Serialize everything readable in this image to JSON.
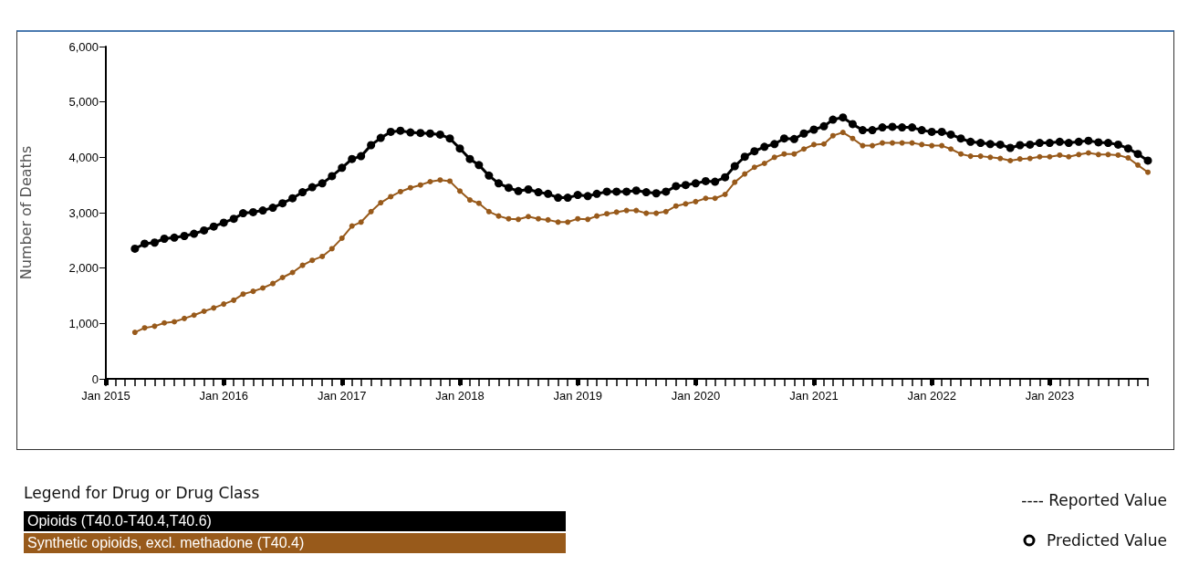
{
  "chart_data": {
    "type": "line",
    "ylabel": "Number of Deaths",
    "legend_title": "Legend for Drug or Drug Class",
    "legend": "bottom left",
    "grid": false,
    "marker": "circle",
    "line_style": "solid",
    "annotations": [
      "---- Reported Value",
      "Predicted Value"
    ],
    "ylim": [
      0,
      6000
    ],
    "yticks": [
      0,
      {
        "value": 1000,
        "label": "1,000"
      },
      {
        "value": 2000,
        "label": "2,000"
      },
      {
        "value": 3000,
        "label": "3,000"
      },
      {
        "value": 4000,
        "label": "4,000"
      },
      {
        "value": 5000,
        "label": "5,000"
      },
      {
        "value": 6000,
        "label": "6,000"
      }
    ],
    "xlim": [
      "2015-01",
      "2023-11"
    ],
    "xticks": [
      {
        "value": "2015-01",
        "label": "Jan 2015"
      },
      {
        "value": "2015-02",
        "label": null
      },
      {
        "value": "2015-03",
        "label": null
      },
      {
        "value": "2015-04",
        "label": null
      },
      {
        "value": "2015-05",
        "label": null
      },
      {
        "value": "2015-06",
        "label": null
      },
      {
        "value": "2015-07",
        "label": null
      },
      {
        "value": "2015-08",
        "label": null
      },
      {
        "value": "2015-09",
        "label": null
      },
      {
        "value": "2015-10",
        "label": null
      },
      {
        "value": "2015-11",
        "label": null
      },
      {
        "value": "2015-12",
        "label": null
      },
      {
        "value": "2016-01",
        "label": "Jan 2016"
      },
      {
        "value": "2016-02",
        "label": null
      },
      {
        "value": "2016-03",
        "label": null
      },
      {
        "value": "2016-04",
        "label": null
      },
      {
        "value": "2016-05",
        "label": null
      },
      {
        "value": "2016-06",
        "label": null
      },
      {
        "value": "2016-07",
        "label": null
      },
      {
        "value": "2016-08",
        "label": null
      },
      {
        "value": "2016-09",
        "label": null
      },
      {
        "value": "2016-10",
        "label": null
      },
      {
        "value": "2016-11",
        "label": null
      },
      {
        "value": "2016-12",
        "label": null
      },
      {
        "value": "2017-01",
        "label": "Jan 2017"
      },
      {
        "value": "2017-02",
        "label": null
      },
      {
        "value": "2017-03",
        "label": null
      },
      {
        "value": "2017-04",
        "label": null
      },
      {
        "value": "2017-05",
        "label": null
      },
      {
        "value": "2017-06",
        "label": null
      },
      {
        "value": "2017-07",
        "label": null
      },
      {
        "value": "2017-08",
        "label": null
      },
      {
        "value": "2017-09",
        "label": null
      },
      {
        "value": "2017-10",
        "label": null
      },
      {
        "value": "2017-11",
        "label": null
      },
      {
        "value": "2017-12",
        "label": null
      },
      {
        "value": "2018-01",
        "label": "Jan 2018"
      },
      {
        "value": "2018-02",
        "label": null
      },
      {
        "value": "2018-03",
        "label": null
      },
      {
        "value": "2018-04",
        "label": null
      },
      {
        "value": "2018-05",
        "label": null
      },
      {
        "value": "2018-06",
        "label": null
      },
      {
        "value": "2018-07",
        "label": null
      },
      {
        "value": "2018-08",
        "label": null
      },
      {
        "value": "2018-09",
        "label": null
      },
      {
        "value": "2018-10",
        "label": null
      },
      {
        "value": "2018-11",
        "label": null
      },
      {
        "value": "2018-12",
        "label": null
      },
      {
        "value": "2019-01",
        "label": "Jan 2019"
      },
      {
        "value": "2019-02",
        "label": null
      },
      {
        "value": "2019-03",
        "label": null
      },
      {
        "value": "2019-04",
        "label": null
      },
      {
        "value": "2019-05",
        "label": null
      },
      {
        "value": "2019-06",
        "label": null
      },
      {
        "value": "2019-07",
        "label": null
      },
      {
        "value": "2019-08",
        "label": null
      },
      {
        "value": "2019-09",
        "label": null
      },
      {
        "value": "2019-10",
        "label": null
      },
      {
        "value": "2019-11",
        "label": null
      },
      {
        "value": "2019-12",
        "label": null
      },
      {
        "value": "2020-01",
        "label": "Jan 2020"
      },
      {
        "value": "2020-02",
        "label": null
      },
      {
        "value": "2020-03",
        "label": null
      },
      {
        "value": "2020-04",
        "label": null
      },
      {
        "value": "2020-05",
        "label": null
      },
      {
        "value": "2020-06",
        "label": null
      },
      {
        "value": "2020-07",
        "label": null
      },
      {
        "value": "2020-08",
        "label": null
      },
      {
        "value": "2020-09",
        "label": null
      },
      {
        "value": "2020-10",
        "label": null
      },
      {
        "value": "2020-11",
        "label": null
      },
      {
        "value": "2020-12",
        "label": null
      },
      {
        "value": "2021-01",
        "label": "Jan 2021"
      },
      {
        "value": "2021-02",
        "label": null
      },
      {
        "value": "2021-03",
        "label": null
      },
      {
        "value": "2021-04",
        "label": null
      },
      {
        "value": "2021-05",
        "label": null
      },
      {
        "value": "2021-06",
        "label": null
      },
      {
        "value": "2021-07",
        "label": null
      },
      {
        "value": "2021-08",
        "label": null
      },
      {
        "value": "2021-09",
        "label": null
      },
      {
        "value": "2021-10",
        "label": null
      },
      {
        "value": "2021-11",
        "label": null
      },
      {
        "value": "2021-12",
        "label": null
      },
      {
        "value": "2022-01",
        "label": "Jan 2022"
      },
      {
        "value": "2022-02",
        "label": null
      },
      {
        "value": "2022-03",
        "label": null
      },
      {
        "value": "2022-04",
        "label": null
      },
      {
        "value": "2022-05",
        "label": null
      },
      {
        "value": "2022-06",
        "label": null
      },
      {
        "value": "2022-07",
        "label": null
      },
      {
        "value": "2022-08",
        "label": null
      },
      {
        "value": "2022-09",
        "label": null
      },
      {
        "value": "2022-10",
        "label": null
      },
      {
        "value": "2022-11",
        "label": null
      },
      {
        "value": "2022-12",
        "label": null
      },
      {
        "value": "2023-01",
        "label": "Jan 2023"
      },
      {
        "value": "2023-02",
        "label": null
      },
      {
        "value": "2023-03",
        "label": null
      },
      {
        "value": "2023-04",
        "label": null
      },
      {
        "value": "2023-05",
        "label": null
      },
      {
        "value": "2023-06",
        "label": null
      },
      {
        "value": "2023-07",
        "label": null
      },
      {
        "value": "2023-08",
        "label": null
      },
      {
        "value": "2023-09",
        "label": null
      },
      {
        "value": "2023-10",
        "label": null
      },
      {
        "value": "2023-11",
        "label": null
      }
    ],
    "x": [
      "2015-04",
      "2015-05",
      "2015-06",
      "2015-07",
      "2015-08",
      "2015-09",
      "2015-10",
      "2015-11",
      "2015-12",
      "2016-01",
      "2016-02",
      "2016-03",
      "2016-04",
      "2016-05",
      "2016-06",
      "2016-07",
      "2016-08",
      "2016-09",
      "2016-10",
      "2016-11",
      "2016-12",
      "2017-01",
      "2017-02",
      "2017-03",
      "2017-04",
      "2017-05",
      "2017-06",
      "2017-07",
      "2017-08",
      "2017-09",
      "2017-10",
      "2017-11",
      "2017-12",
      "2018-01",
      "2018-02",
      "2018-03",
      "2018-04",
      "2018-05",
      "2018-06",
      "2018-07",
      "2018-08",
      "2018-09",
      "2018-10",
      "2018-11",
      "2018-12",
      "2019-01",
      "2019-02",
      "2019-03",
      "2019-04",
      "2019-05",
      "2019-06",
      "2019-07",
      "2019-08",
      "2019-09",
      "2019-10",
      "2019-11",
      "2019-12",
      "2020-01",
      "2020-02",
      "2020-03",
      "2020-04",
      "2020-05",
      "2020-06",
      "2020-07",
      "2020-08",
      "2020-09",
      "2020-10",
      "2020-11",
      "2020-12",
      "2021-01",
      "2021-02",
      "2021-03",
      "2021-04",
      "2021-05",
      "2021-06",
      "2021-07",
      "2021-08",
      "2021-09",
      "2021-10",
      "2021-11",
      "2021-12",
      "2022-01",
      "2022-02",
      "2022-03",
      "2022-04",
      "2022-05",
      "2022-06",
      "2022-07",
      "2022-08",
      "2022-09",
      "2022-10",
      "2022-11",
      "2022-12",
      "2023-01",
      "2023-02",
      "2023-03",
      "2023-04",
      "2023-05",
      "2023-06",
      "2023-07",
      "2023-08",
      "2023-09",
      "2023-10",
      "2023-11"
    ],
    "series": [
      {
        "name": "Opioids (T40.0-T40.4,T40.6)",
        "color": "#000000",
        "values": [
          2350,
          2440,
          2460,
          2530,
          2550,
          2580,
          2620,
          2680,
          2750,
          2820,
          2890,
          2990,
          3010,
          3040,
          3090,
          3170,
          3260,
          3370,
          3460,
          3530,
          3660,
          3810,
          3970,
          4020,
          4220,
          4350,
          4460,
          4480,
          4450,
          4440,
          4430,
          4410,
          4340,
          4160,
          3970,
          3860,
          3670,
          3530,
          3450,
          3390,
          3420,
          3370,
          3340,
          3270,
          3270,
          3320,
          3300,
          3340,
          3380,
          3380,
          3380,
          3400,
          3370,
          3350,
          3380,
          3480,
          3500,
          3530,
          3570,
          3560,
          3640,
          3840,
          4010,
          4110,
          4190,
          4240,
          4340,
          4330,
          4430,
          4500,
          4560,
          4680,
          4720,
          4600,
          4490,
          4490,
          4540,
          4550,
          4540,
          4540,
          4490,
          4460,
          4460,
          4410,
          4340,
          4280,
          4260,
          4240,
          4230,
          4170,
          4220,
          4230,
          4260,
          4260,
          4280,
          4260,
          4280,
          4300,
          4270,
          4260,
          4230,
          4160,
          4060,
          3940
        ]
      },
      {
        "name": "Synthetic opioids, excl. methadone (T40.4)",
        "color": "#985a1b",
        "values": [
          840,
          920,
          950,
          1010,
          1030,
          1090,
          1150,
          1220,
          1280,
          1350,
          1420,
          1530,
          1580,
          1640,
          1720,
          1830,
          1920,
          2050,
          2140,
          2210,
          2350,
          2540,
          2760,
          2830,
          3020,
          3180,
          3290,
          3380,
          3450,
          3500,
          3560,
          3590,
          3570,
          3390,
          3230,
          3170,
          3020,
          2940,
          2890,
          2880,
          2930,
          2890,
          2870,
          2830,
          2830,
          2890,
          2880,
          2940,
          2980,
          3010,
          3040,
          3040,
          2990,
          2990,
          3020,
          3120,
          3160,
          3200,
          3260,
          3260,
          3330,
          3550,
          3700,
          3820,
          3890,
          4000,
          4060,
          4060,
          4150,
          4230,
          4240,
          4390,
          4450,
          4340,
          4210,
          4210,
          4260,
          4260,
          4260,
          4260,
          4230,
          4210,
          4210,
          4150,
          4060,
          4020,
          4020,
          4000,
          3980,
          3940,
          3970,
          3980,
          4010,
          4010,
          4040,
          4010,
          4050,
          4080,
          4050,
          4050,
          4040,
          3990,
          3860,
          3730
        ]
      }
    ]
  }
}
